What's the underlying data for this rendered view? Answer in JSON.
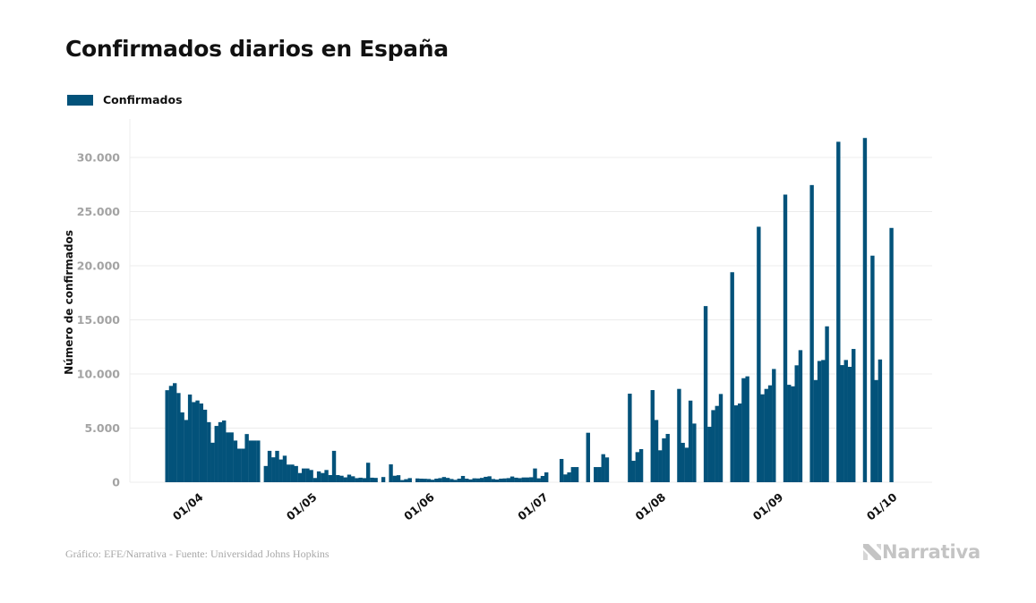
{
  "chart_data": {
    "type": "bar",
    "title": "Confirmados diarios en España",
    "xlabel": "",
    "ylabel": "Número de confirmados",
    "legend": [
      {
        "name": "Confirmados",
        "color": "#03527a"
      }
    ],
    "legend_position": "top-left",
    "grid": true,
    "ylim": [
      0,
      33000
    ],
    "yticks": [
      0,
      5000,
      10000,
      15000,
      20000,
      25000,
      30000
    ],
    "ytick_labels": [
      "0",
      "5.000",
      "10.000",
      "15.000",
      "20.000",
      "25.000",
      "30.000"
    ],
    "x_start": "23/03",
    "xtick_labels": [
      {
        "label": "01/04",
        "day_index": 9
      },
      {
        "label": "01/05",
        "day_index": 39
      },
      {
        "label": "01/06",
        "day_index": 70
      },
      {
        "label": "01/07",
        "day_index": 100
      },
      {
        "label": "01/08",
        "day_index": 131
      },
      {
        "label": "01/09",
        "day_index": 162
      },
      {
        "label": "01/10",
        "day_index": 192
      }
    ],
    "series": [
      {
        "name": "Confirmados",
        "values": [
          8500,
          8900,
          9150,
          8240,
          6450,
          5750,
          8100,
          7400,
          7550,
          7270,
          6700,
          5550,
          3650,
          5200,
          5550,
          5700,
          4600,
          4600,
          3850,
          3100,
          3100,
          4450,
          3850,
          3850,
          3850,
          0,
          1500,
          2900,
          2300,
          2900,
          2100,
          2450,
          1630,
          1630,
          1500,
          850,
          1270,
          1270,
          1130,
          390,
          1000,
          850,
          1130,
          660,
          2900,
          660,
          600,
          450,
          700,
          550,
          380,
          420,
          380,
          1800,
          420,
          400,
          0,
          480,
          0,
          1650,
          600,
          650,
          200,
          280,
          380,
          0,
          350,
          330,
          320,
          300,
          230,
          330,
          380,
          480,
          400,
          300,
          220,
          330,
          580,
          330,
          260,
          360,
          350,
          400,
          500,
          550,
          300,
          250,
          330,
          350,
          380,
          530,
          420,
          380,
          440,
          440,
          460,
          1270,
          360,
          580,
          910,
          0,
          0,
          0,
          2150,
          720,
          910,
          1400,
          1400,
          0,
          0,
          4570,
          0,
          1400,
          1400,
          2590,
          2290,
          0,
          0,
          0,
          0,
          0,
          8180,
          1980,
          2780,
          3060,
          0,
          0,
          8510,
          5750,
          2950,
          4050,
          4460,
          0,
          0,
          8620,
          3640,
          3190,
          7540,
          5420,
          0,
          0,
          16270,
          5120,
          6660,
          7050,
          8150,
          0,
          0,
          19400,
          7100,
          7270,
          9610,
          9780,
          0,
          0,
          23600,
          8120,
          8620,
          8950,
          10460,
          0,
          0,
          26570,
          9000,
          8860,
          10800,
          12200,
          0,
          0,
          27450,
          9440,
          11200,
          11290,
          14400,
          0,
          0,
          31450,
          10820,
          11290,
          10660,
          12310,
          0,
          0,
          31800,
          0,
          20930,
          9440,
          11340,
          0,
          0,
          23490
        ]
      }
    ]
  },
  "header": {
    "title": "Confirmados diarios en España"
  },
  "legend": {
    "label": "Confirmados"
  },
  "footer": {
    "credit": "Gráfico: EFE/Narrativa - Fuente: Universidad Johns Hopkins",
    "logo_text": "Narrativa"
  },
  "colors": {
    "bar": "#03527a",
    "grid": "#ececec",
    "axis_tick": "#a3a3a3",
    "text": "#111111",
    "logo": "#c4c4c4",
    "footer": "#a8a8a8"
  }
}
